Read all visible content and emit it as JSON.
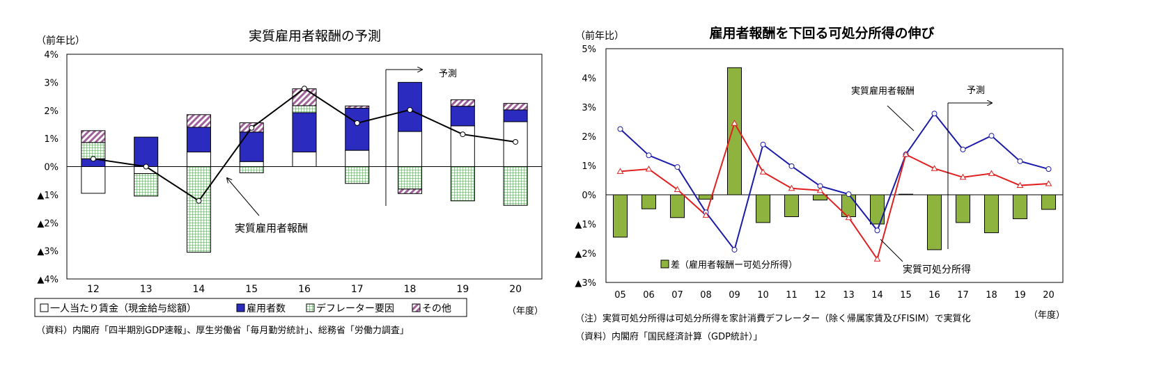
{
  "chart_data": [
    {
      "type": "stacked-bar+line",
      "title": "実質雇用者報酬の予測",
      "ylabel": "（前年比）",
      "xlabel_unit": "（年度）",
      "ylim": [
        -4,
        4
      ],
      "y_ticks": [
        {
          "v": 4,
          "t": "4%"
        },
        {
          "v": 3,
          "t": "3%"
        },
        {
          "v": 2,
          "t": "2%"
        },
        {
          "v": 1,
          "t": "1%"
        },
        {
          "v": 0,
          "t": "0%"
        },
        {
          "v": -1,
          "t": "▲1%"
        },
        {
          "v": -2,
          "t": "▲2%"
        },
        {
          "v": -3,
          "t": "▲3%"
        },
        {
          "v": -4,
          "t": "▲4%"
        }
      ],
      "categories": [
        "12",
        "13",
        "14",
        "15",
        "16",
        "17",
        "18",
        "19",
        "20"
      ],
      "series": [
        {
          "name": "一人当たり賃金（現金給与総額）",
          "kind": "bar",
          "values": [
            -0.95,
            -0.25,
            0.52,
            0.18,
            0.52,
            0.58,
            1.25,
            1.45,
            1.6
          ]
        },
        {
          "name": "雇用者数",
          "kind": "bar",
          "values": [
            0.28,
            1.05,
            0.88,
            1.05,
            1.4,
            1.5,
            1.75,
            0.7,
            0.42
          ]
        },
        {
          "name": "デフレーター要因",
          "kind": "bar",
          "values": [
            0.58,
            -0.8,
            -3.05,
            -0.22,
            0.25,
            -0.6,
            -0.8,
            -1.22,
            -1.38
          ]
        },
        {
          "name": "その他",
          "kind": "bar",
          "values": [
            0.42,
            0,
            0.45,
            0.33,
            0.6,
            0.08,
            -0.16,
            0.23,
            0.23
          ]
        },
        {
          "name": "実質雇用者報酬",
          "kind": "line",
          "values": [
            0.28,
            0.0,
            -1.22,
            1.38,
            2.78,
            1.55,
            2.02,
            1.15,
            0.88
          ]
        }
      ],
      "forecast_label": "予測",
      "annotation": "実質雇用者報酬",
      "source": "（資料）内閣府「四半期別GDP速報」、厚生労働省「毎月勤労統計」、総務省「労働力調査」"
    },
    {
      "type": "bar+line",
      "title": "雇用者報酬を下回る可処分所得の伸び",
      "ylabel": "（前年比）",
      "xlabel_unit": "（年度）",
      "ylim": [
        -3,
        5
      ],
      "y_ticks": [
        {
          "v": 5,
          "t": "5%"
        },
        {
          "v": 4,
          "t": "4%"
        },
        {
          "v": 3,
          "t": "3%"
        },
        {
          "v": 2,
          "t": "2%"
        },
        {
          "v": 1,
          "t": "1%"
        },
        {
          "v": 0,
          "t": "0%"
        },
        {
          "v": -1,
          "t": "▲1%"
        },
        {
          "v": -2,
          "t": "▲2%"
        },
        {
          "v": -3,
          "t": "▲3%"
        }
      ],
      "categories": [
        "05",
        "06",
        "07",
        "08",
        "09",
        "10",
        "11",
        "12",
        "13",
        "14",
        "15",
        "16",
        "17",
        "18",
        "19",
        "20"
      ],
      "series": [
        {
          "name": "差（雇用者報酬ー可処分所得）",
          "kind": "bar",
          "values": [
            -1.45,
            -0.48,
            -0.78,
            -0.15,
            4.35,
            -0.95,
            -0.75,
            -0.18,
            -0.75,
            -1.0,
            0.02,
            -1.88,
            -0.95,
            -1.3,
            -0.82,
            -0.5
          ]
        },
        {
          "name": "実質雇用者報酬",
          "kind": "line",
          "values": [
            2.25,
            1.35,
            0.95,
            -0.6,
            -1.88,
            1.72,
            0.98,
            0.3,
            0.02,
            -1.22,
            1.38,
            2.78,
            1.55,
            2.02,
            1.15,
            0.88
          ]
        },
        {
          "name": "実質可処分所得",
          "kind": "line",
          "values": [
            0.8,
            0.88,
            0.18,
            -0.7,
            2.45,
            0.78,
            0.22,
            0.15,
            -0.78,
            -2.2,
            1.38,
            0.9,
            0.6,
            0.73,
            0.32,
            0.38
          ]
        }
      ],
      "forecast_label": "予測",
      "note": "（注）実質可処分所得は可処分所得を家計消費デフレーター（除く帰属家賃及びFISIM）で実質化",
      "source": "（資料）内閣府「国民経済計算（GDP統計）」"
    }
  ],
  "colors": {
    "per_capita_fill": "#ffffff",
    "employees": "#2b2bbf",
    "deflator": "#7fcf7f",
    "other": "#9a5a9a",
    "line1": "#000000",
    "bar2": "#8fb33f",
    "comp_line": "#1a1aa8",
    "disp_line": "#e02020"
  }
}
